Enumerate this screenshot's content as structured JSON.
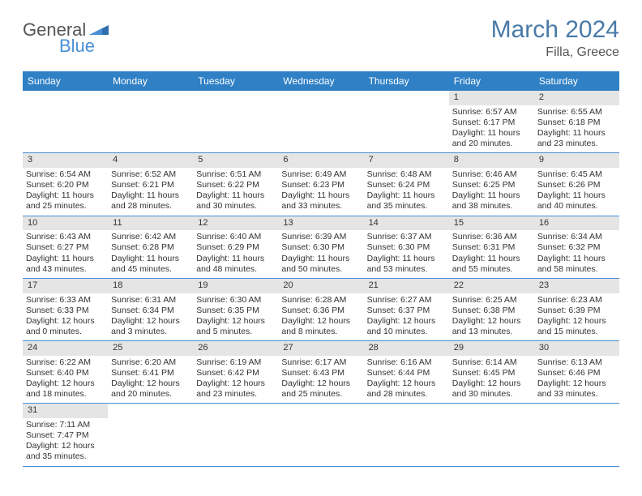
{
  "logo": {
    "text1": "General",
    "text2": "Blue"
  },
  "title": "March 2024",
  "subtitle": "Filla, Greece",
  "colors": {
    "header_bg": "#2f80c5",
    "header_fg": "#ffffff",
    "daynum_bg": "#e5e5e5",
    "border": "#4a8fd6",
    "title_color": "#4a7aa8"
  },
  "weekdays": [
    "Sunday",
    "Monday",
    "Tuesday",
    "Wednesday",
    "Thursday",
    "Friday",
    "Saturday"
  ],
  "weeks": [
    [
      {
        "n": "",
        "sr": "",
        "ss": "",
        "dl": ""
      },
      {
        "n": "",
        "sr": "",
        "ss": "",
        "dl": ""
      },
      {
        "n": "",
        "sr": "",
        "ss": "",
        "dl": ""
      },
      {
        "n": "",
        "sr": "",
        "ss": "",
        "dl": ""
      },
      {
        "n": "",
        "sr": "",
        "ss": "",
        "dl": ""
      },
      {
        "n": "1",
        "sr": "Sunrise: 6:57 AM",
        "ss": "Sunset: 6:17 PM",
        "dl": "Daylight: 11 hours and 20 minutes."
      },
      {
        "n": "2",
        "sr": "Sunrise: 6:55 AM",
        "ss": "Sunset: 6:18 PM",
        "dl": "Daylight: 11 hours and 23 minutes."
      }
    ],
    [
      {
        "n": "3",
        "sr": "Sunrise: 6:54 AM",
        "ss": "Sunset: 6:20 PM",
        "dl": "Daylight: 11 hours and 25 minutes."
      },
      {
        "n": "4",
        "sr": "Sunrise: 6:52 AM",
        "ss": "Sunset: 6:21 PM",
        "dl": "Daylight: 11 hours and 28 minutes."
      },
      {
        "n": "5",
        "sr": "Sunrise: 6:51 AM",
        "ss": "Sunset: 6:22 PM",
        "dl": "Daylight: 11 hours and 30 minutes."
      },
      {
        "n": "6",
        "sr": "Sunrise: 6:49 AM",
        "ss": "Sunset: 6:23 PM",
        "dl": "Daylight: 11 hours and 33 minutes."
      },
      {
        "n": "7",
        "sr": "Sunrise: 6:48 AM",
        "ss": "Sunset: 6:24 PM",
        "dl": "Daylight: 11 hours and 35 minutes."
      },
      {
        "n": "8",
        "sr": "Sunrise: 6:46 AM",
        "ss": "Sunset: 6:25 PM",
        "dl": "Daylight: 11 hours and 38 minutes."
      },
      {
        "n": "9",
        "sr": "Sunrise: 6:45 AM",
        "ss": "Sunset: 6:26 PM",
        "dl": "Daylight: 11 hours and 40 minutes."
      }
    ],
    [
      {
        "n": "10",
        "sr": "Sunrise: 6:43 AM",
        "ss": "Sunset: 6:27 PM",
        "dl": "Daylight: 11 hours and 43 minutes."
      },
      {
        "n": "11",
        "sr": "Sunrise: 6:42 AM",
        "ss": "Sunset: 6:28 PM",
        "dl": "Daylight: 11 hours and 45 minutes."
      },
      {
        "n": "12",
        "sr": "Sunrise: 6:40 AM",
        "ss": "Sunset: 6:29 PM",
        "dl": "Daylight: 11 hours and 48 minutes."
      },
      {
        "n": "13",
        "sr": "Sunrise: 6:39 AM",
        "ss": "Sunset: 6:30 PM",
        "dl": "Daylight: 11 hours and 50 minutes."
      },
      {
        "n": "14",
        "sr": "Sunrise: 6:37 AM",
        "ss": "Sunset: 6:30 PM",
        "dl": "Daylight: 11 hours and 53 minutes."
      },
      {
        "n": "15",
        "sr": "Sunrise: 6:36 AM",
        "ss": "Sunset: 6:31 PM",
        "dl": "Daylight: 11 hours and 55 minutes."
      },
      {
        "n": "16",
        "sr": "Sunrise: 6:34 AM",
        "ss": "Sunset: 6:32 PM",
        "dl": "Daylight: 11 hours and 58 minutes."
      }
    ],
    [
      {
        "n": "17",
        "sr": "Sunrise: 6:33 AM",
        "ss": "Sunset: 6:33 PM",
        "dl": "Daylight: 12 hours and 0 minutes."
      },
      {
        "n": "18",
        "sr": "Sunrise: 6:31 AM",
        "ss": "Sunset: 6:34 PM",
        "dl": "Daylight: 12 hours and 3 minutes."
      },
      {
        "n": "19",
        "sr": "Sunrise: 6:30 AM",
        "ss": "Sunset: 6:35 PM",
        "dl": "Daylight: 12 hours and 5 minutes."
      },
      {
        "n": "20",
        "sr": "Sunrise: 6:28 AM",
        "ss": "Sunset: 6:36 PM",
        "dl": "Daylight: 12 hours and 8 minutes."
      },
      {
        "n": "21",
        "sr": "Sunrise: 6:27 AM",
        "ss": "Sunset: 6:37 PM",
        "dl": "Daylight: 12 hours and 10 minutes."
      },
      {
        "n": "22",
        "sr": "Sunrise: 6:25 AM",
        "ss": "Sunset: 6:38 PM",
        "dl": "Daylight: 12 hours and 13 minutes."
      },
      {
        "n": "23",
        "sr": "Sunrise: 6:23 AM",
        "ss": "Sunset: 6:39 PM",
        "dl": "Daylight: 12 hours and 15 minutes."
      }
    ],
    [
      {
        "n": "24",
        "sr": "Sunrise: 6:22 AM",
        "ss": "Sunset: 6:40 PM",
        "dl": "Daylight: 12 hours and 18 minutes."
      },
      {
        "n": "25",
        "sr": "Sunrise: 6:20 AM",
        "ss": "Sunset: 6:41 PM",
        "dl": "Daylight: 12 hours and 20 minutes."
      },
      {
        "n": "26",
        "sr": "Sunrise: 6:19 AM",
        "ss": "Sunset: 6:42 PM",
        "dl": "Daylight: 12 hours and 23 minutes."
      },
      {
        "n": "27",
        "sr": "Sunrise: 6:17 AM",
        "ss": "Sunset: 6:43 PM",
        "dl": "Daylight: 12 hours and 25 minutes."
      },
      {
        "n": "28",
        "sr": "Sunrise: 6:16 AM",
        "ss": "Sunset: 6:44 PM",
        "dl": "Daylight: 12 hours and 28 minutes."
      },
      {
        "n": "29",
        "sr": "Sunrise: 6:14 AM",
        "ss": "Sunset: 6:45 PM",
        "dl": "Daylight: 12 hours and 30 minutes."
      },
      {
        "n": "30",
        "sr": "Sunrise: 6:13 AM",
        "ss": "Sunset: 6:46 PM",
        "dl": "Daylight: 12 hours and 33 minutes."
      }
    ],
    [
      {
        "n": "31",
        "sr": "Sunrise: 7:11 AM",
        "ss": "Sunset: 7:47 PM",
        "dl": "Daylight: 12 hours and 35 minutes."
      },
      {
        "n": "",
        "sr": "",
        "ss": "",
        "dl": ""
      },
      {
        "n": "",
        "sr": "",
        "ss": "",
        "dl": ""
      },
      {
        "n": "",
        "sr": "",
        "ss": "",
        "dl": ""
      },
      {
        "n": "",
        "sr": "",
        "ss": "",
        "dl": ""
      },
      {
        "n": "",
        "sr": "",
        "ss": "",
        "dl": ""
      },
      {
        "n": "",
        "sr": "",
        "ss": "",
        "dl": ""
      }
    ]
  ]
}
